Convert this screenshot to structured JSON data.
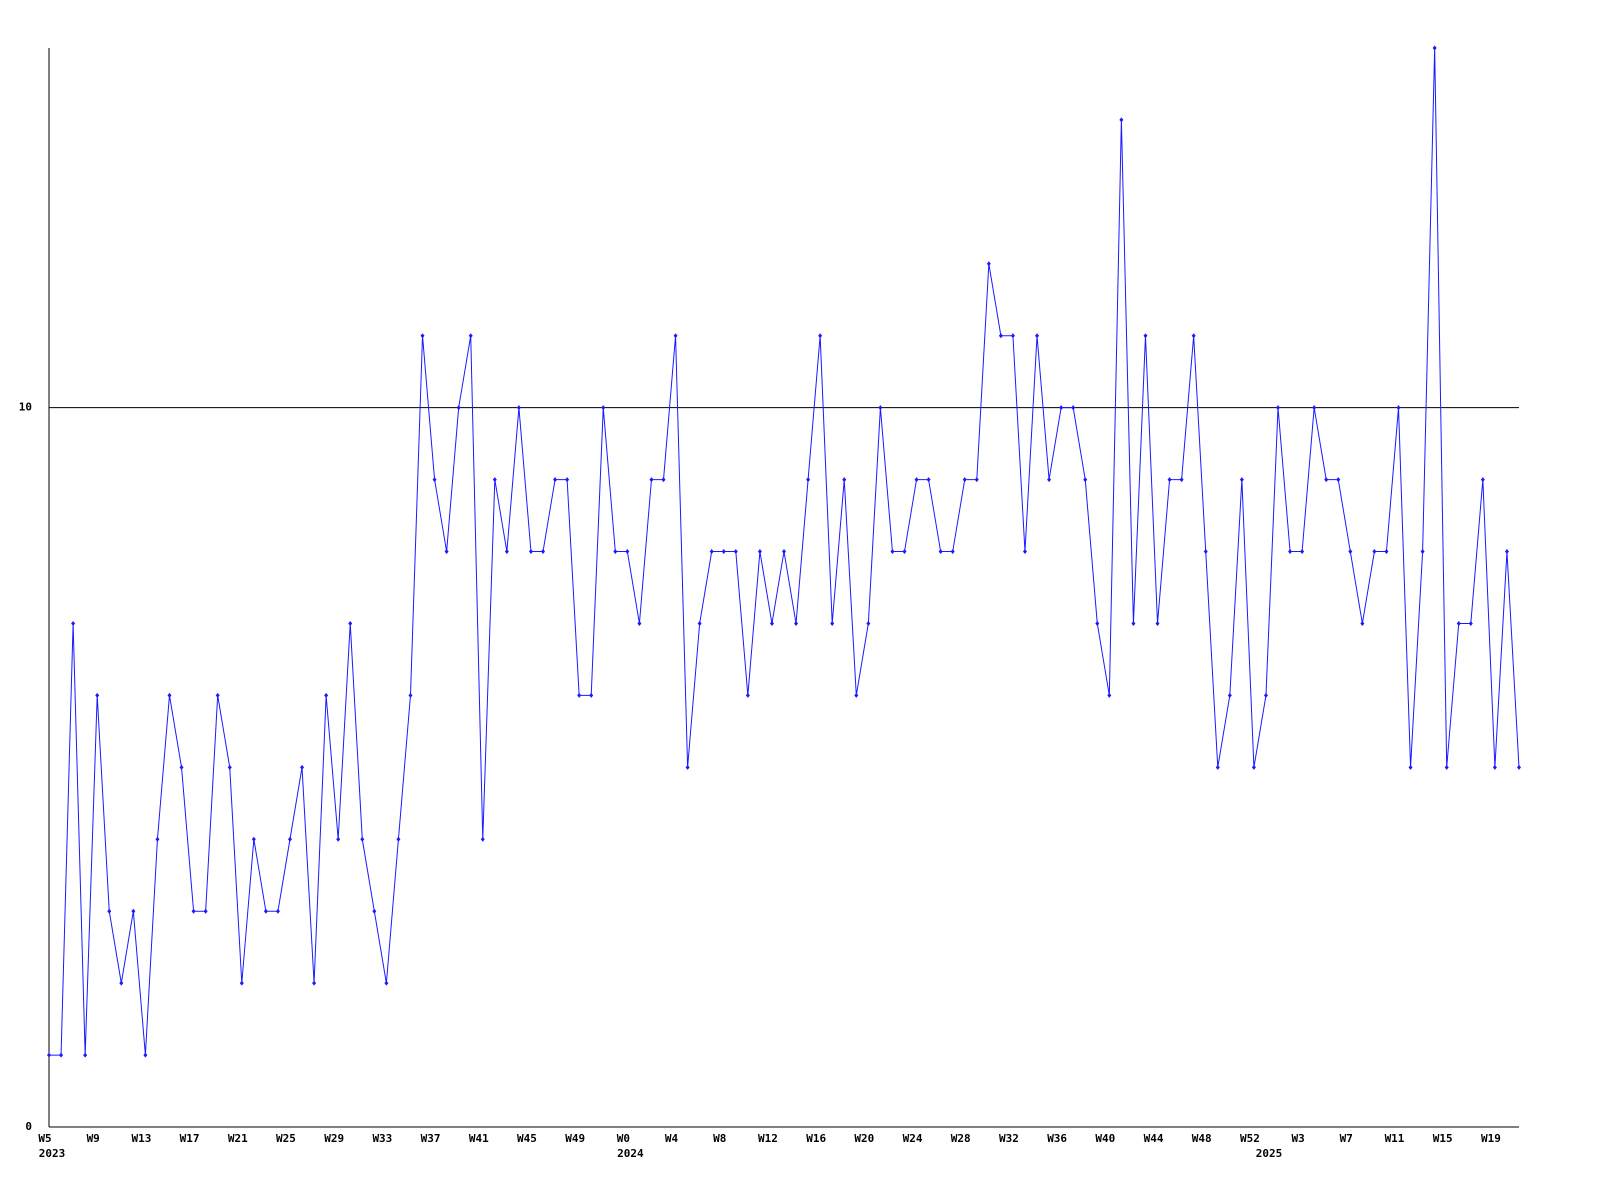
{
  "chart_data": {
    "type": "line",
    "categories": [
      "W5",
      null,
      null,
      null,
      "W9",
      null,
      null,
      null,
      "W13",
      null,
      null,
      null,
      "W17",
      null,
      null,
      null,
      "W21",
      null,
      null,
      null,
      "W25",
      null,
      null,
      null,
      "W29",
      null,
      null,
      null,
      "W33",
      null,
      null,
      null,
      "W37",
      null,
      null,
      null,
      "W41",
      null,
      null,
      null,
      "W45",
      null,
      null,
      null,
      "W49",
      null,
      null,
      null,
      "W0",
      null,
      null,
      null,
      "W4",
      null,
      null,
      null,
      "W8",
      null,
      null,
      null,
      "W12",
      null,
      null,
      null,
      "W16",
      null,
      null,
      null,
      "W20",
      null,
      null,
      null,
      "W24",
      null,
      null,
      null,
      "W28",
      null,
      null,
      null,
      "W32",
      null,
      null,
      null,
      "W36",
      null,
      null,
      null,
      "W40",
      null,
      null,
      null,
      "W44",
      null,
      null,
      null,
      "W48",
      null,
      null,
      null,
      "W52",
      null,
      null,
      null,
      "W3",
      null,
      null,
      null,
      "W7",
      null,
      null,
      null,
      "W11",
      null,
      null,
      null,
      "W15",
      null,
      null,
      null,
      "W19",
      null,
      null
    ],
    "year_labels": [
      "2023",
      null,
      null,
      null,
      null,
      null,
      null,
      null,
      null,
      null,
      null,
      null,
      null,
      null,
      null,
      null,
      null,
      null,
      null,
      null,
      null,
      null,
      null,
      null,
      null,
      null,
      null,
      null,
      null,
      null,
      null,
      null,
      null,
      null,
      null,
      null,
      null,
      null,
      null,
      null,
      null,
      null,
      null,
      null,
      null,
      null,
      null,
      null,
      "2024",
      null,
      null,
      null,
      null,
      null,
      null,
      null,
      null,
      null,
      null,
      null,
      null,
      null,
      null,
      null,
      null,
      null,
      null,
      null,
      null,
      null,
      null,
      null,
      null,
      null,
      null,
      null,
      null,
      null,
      null,
      null,
      null,
      null,
      null,
      null,
      null,
      null,
      null,
      null,
      null,
      null,
      null,
      null,
      null,
      null,
      null,
      null,
      null,
      null,
      null,
      null,
      null,
      "2025",
      null,
      null,
      null,
      null,
      null,
      null,
      null,
      null,
      null,
      null,
      null,
      null,
      null,
      null,
      null,
      null,
      null,
      null,
      null,
      null
    ],
    "values": [
      1,
      1,
      7,
      1,
      6,
      3,
      2,
      3,
      1,
      4,
      6,
      5,
      3,
      3,
      6,
      5,
      2,
      4,
      3,
      3,
      4,
      5,
      2,
      6,
      4,
      7,
      4,
      3,
      2,
      4,
      6,
      11,
      9,
      8,
      10,
      11,
      4,
      9,
      8,
      10,
      8,
      8,
      9,
      9,
      6,
      6,
      10,
      8,
      8,
      7,
      9,
      9,
      11,
      5,
      7,
      8,
      8,
      8,
      6,
      8,
      7,
      8,
      7,
      9,
      11,
      7,
      9,
      6,
      7,
      10,
      8,
      8,
      9,
      9,
      8,
      8,
      9,
      9,
      12,
      11,
      11,
      8,
      11,
      9,
      10,
      10,
      9,
      7,
      6,
      14,
      7,
      11,
      7,
      9,
      9,
      11,
      8,
      5,
      6,
      9,
      5,
      6,
      10,
      8,
      8,
      10,
      9,
      9,
      8,
      7,
      8,
      8,
      10,
      5,
      8,
      15,
      5,
      7,
      7,
      9,
      5,
      8,
      5
    ],
    "color": "#1a1aff",
    "ylim": [
      0,
      15
    ],
    "yticks": [
      0,
      10
    ],
    "grid": true
  }
}
